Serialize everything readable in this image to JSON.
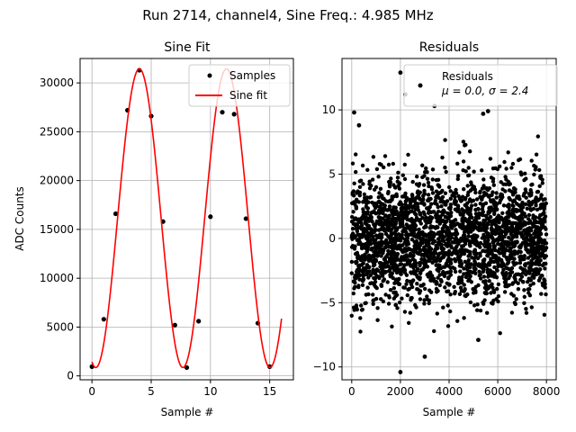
{
  "figure": {
    "suptitle": "Run 2714, channel4, Sine Freq.: 4.985 MHz"
  },
  "chart_data": [
    {
      "type": "line",
      "title": "Sine Fit",
      "xlabel": "Sample #",
      "ylabel": "ADC Counts",
      "xlim": [
        -1,
        17
      ],
      "ylim": [
        -400,
        32500
      ],
      "xticks": [
        0,
        5,
        10,
        15
      ],
      "yticks": [
        0,
        5000,
        10000,
        15000,
        20000,
        25000,
        30000
      ],
      "grid": true,
      "legend": "top-right",
      "series": [
        {
          "name": "Samples",
          "style": "points",
          "color": "#000000",
          "x": [
            0,
            1,
            2,
            3,
            4,
            5,
            6,
            7,
            8,
            9,
            10,
            11,
            12,
            13,
            14,
            15
          ],
          "y": [
            950,
            5800,
            16600,
            27200,
            31300,
            26600,
            15800,
            5200,
            850,
            5600,
            16300,
            27000,
            26800,
            16100,
            5400,
            950
          ]
        },
        {
          "name": "Sine fit",
          "style": "line",
          "color": "#ff0000",
          "model": {
            "offset": 16150,
            "amplitude": 15300,
            "period": 7.35,
            "x_at_max": 4.0,
            "x_from": 0,
            "x_to": 16
          }
        }
      ]
    },
    {
      "type": "scatter",
      "title": "Residuals",
      "xlabel": "Sample #",
      "xlim": [
        -400,
        8400
      ],
      "ylim": [
        -11,
        14
      ],
      "xticks": [
        0,
        2000,
        4000,
        6000,
        8000
      ],
      "yticks": [
        -10,
        -5,
        0,
        5,
        10
      ],
      "grid": true,
      "legend": "top-right",
      "series": [
        {
          "name": "Residuals",
          "stats_line": "μ = 0.0, σ = 2.4",
          "color": "#000000",
          "n_points": 8000,
          "mean": 0.0,
          "sigma": 2.4,
          "x_range": [
            0,
            8000
          ],
          "highlighted": [
            {
              "x": 100,
              "y": 9.8
            },
            {
              "x": 300,
              "y": 8.8
            },
            {
              "x": 2000,
              "y": 12.9
            },
            {
              "x": 2000,
              "y": -10.4
            },
            {
              "x": 3000,
              "y": -9.2
            },
            {
              "x": 2200,
              "y": 11.2
            },
            {
              "x": 5400,
              "y": 9.7
            },
            {
              "x": 3400,
              "y": 10.3
            },
            {
              "x": 5600,
              "y": 9.9
            },
            {
              "x": 5200,
              "y": -7.9
            }
          ]
        }
      ]
    }
  ]
}
